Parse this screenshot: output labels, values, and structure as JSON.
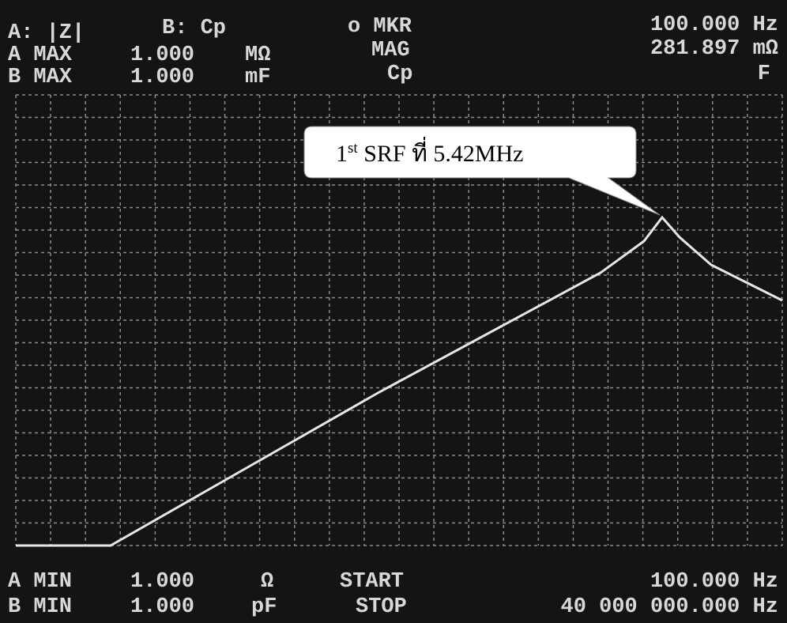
{
  "header": {
    "trace_a": "A: |Z|",
    "trace_b": "B: Cp",
    "a_max": {
      "label": "A MAX",
      "value": "1.000",
      "unit": "MΩ"
    },
    "b_max": {
      "label": "B MAX",
      "value": "1.000",
      "unit": "mF"
    },
    "marker": {
      "label": "o MKR",
      "mode": "MAG",
      "param": "Cp",
      "frequency": "100.000 Hz",
      "value_a": "281.897 mΩ",
      "value_b": "F"
    }
  },
  "footer": {
    "a_min": {
      "label": "A MIN",
      "value": "1.000",
      "unit": "Ω"
    },
    "b_min": {
      "label": "B MIN",
      "value": "1.000",
      "unit": "pF"
    },
    "start": {
      "label": "START",
      "value": "100.000 Hz"
    },
    "stop": {
      "label": "STOP",
      "value": "40 000 000.000 Hz"
    }
  },
  "callout": {
    "ordinal": "1",
    "suffix": "st",
    "text": " SRF ที่ 5.42MHz"
  }
}
